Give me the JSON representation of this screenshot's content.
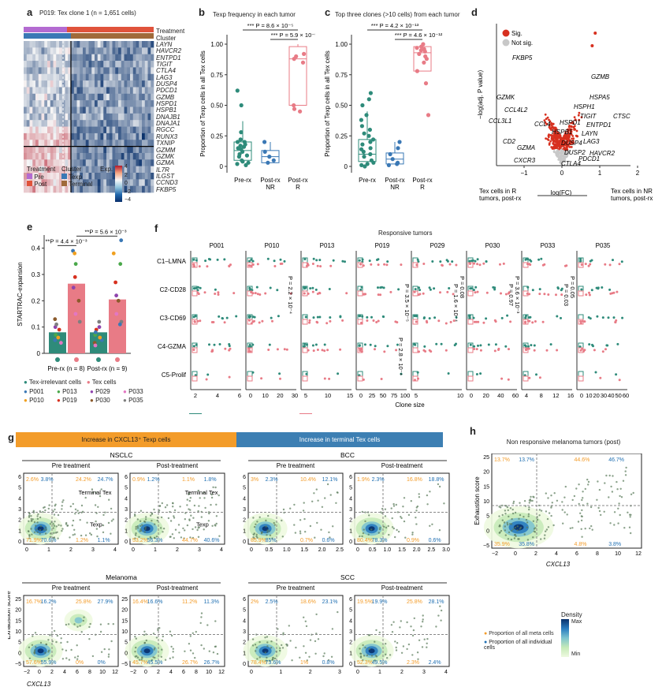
{
  "colors": {
    "pre": "#2e8b7a",
    "post": "#e87b86",
    "texp": "#3a78b5",
    "terminal": "#a06a3a",
    "sig": "#d7301f",
    "notsig": "#c8c8c8",
    "orange": "#f39c2a",
    "blue": "#1f6fb2",
    "banner_left": "#f39c2a",
    "banner_right": "#3d7fb3"
  },
  "panel_a": {
    "label": "a",
    "title": "P019: Tex clone 1 (n = 1,651 cells)",
    "track_labels": [
      "Treatment",
      "Cluster"
    ],
    "genes": [
      "LAYN",
      "HAVCR2",
      "ENTPD1",
      "TIGIT",
      "CTLA4",
      "LAG3",
      "DUSP4",
      "PDCD1",
      "GZMB",
      "HSPD1",
      "HSPB1",
      "DNAJB1",
      "DNAJA1",
      "RGCC",
      "RUNX3",
      "TXNIP",
      "GZMM",
      "GZMK",
      "GZMA",
      "IL7R",
      "ILGST",
      "CCND3",
      "FKBP5"
    ],
    "legend": {
      "treatment_title": "Treatment",
      "treatment": [
        "Pre",
        "Post"
      ],
      "cluster_title": "Cluster",
      "cluster": [
        "Texp",
        "Terminal"
      ],
      "exp_title": "Exp.",
      "exp_ticks": [
        "4",
        "2",
        "0",
        "−2",
        "−4"
      ]
    }
  },
  "panel_b": {
    "label": "b",
    "title": "Texp frequency in each tumor",
    "ylabel": "Proportion of Texp cells in all Tex cells",
    "pvals": [
      "*** P = 8.6 × 10⁻⁵",
      "*** P = 5.9 × 10⁻⁵"
    ],
    "yticks": [
      "0",
      "0.25",
      "0.50",
      "0.75",
      "1.00"
    ],
    "groups": [
      "Pre-rx",
      "Post-rx NR",
      "Post-rx R"
    ]
  },
  "panel_c": {
    "label": "c",
    "title": "Top three clones (>10 cells) from each tumor",
    "ylabel": "Proportion of Texp cells in all Tex cells",
    "pvals": [
      "*** P = 4.2 × 10⁻¹³",
      "*** P = 4.6 × 10⁻¹²"
    ],
    "yticks": [
      "0",
      "0.25",
      "0.50",
      "0.75",
      "1.00"
    ],
    "groups": [
      "Pre-rx",
      "Post-rx NR",
      "Post-rx R"
    ]
  },
  "panel_d": {
    "label": "d",
    "legend": [
      "Sig.",
      "Not sig."
    ],
    "ylabel": "−log(adj. P value)",
    "xticks": [
      "−1",
      "0",
      "1",
      "2"
    ],
    "genes": [
      "FKBP5",
      "GZMB",
      "GZMK",
      "HSPA5",
      "HSPH1",
      "CCL4L2",
      "TIGIT",
      "CTSC",
      "CCL3L1",
      "HSPD1",
      "CCL4",
      "ENTPD1",
      "HSPB1",
      "LAYN",
      "LAG3",
      "CD2",
      "DUSP4",
      "GZMA",
      "DUSP2",
      "HAVCR2",
      "PDCD1",
      "CXCR3",
      "CTLA4"
    ],
    "axis_left": "Tex cells in R tumors, post-rx",
    "axis_mid": "log(FC)",
    "axis_right": "Tex cells in NR tumors, post-rx"
  },
  "panel_e": {
    "label": "e",
    "ylabel": "STARTRAC-expansion",
    "yticks": [
      "0",
      "0.1",
      "0.2",
      "0.3",
      "0.4"
    ],
    "pvals": [
      "**P = 4.4 × 10⁻³",
      "**P = 5.6 × 10⁻³"
    ],
    "groups": [
      "Pre-rx (n = 8)",
      "Post-rx (n = 9)"
    ],
    "bars": [
      0.08,
      0.265,
      0.08,
      0.205
    ],
    "legend_types": [
      "Tex-irrelevant cells",
      "Tex cells"
    ],
    "patients": [
      "P001",
      "P010",
      "P013",
      "P019",
      "P029",
      "P030",
      "P033",
      "P035"
    ],
    "patient_colors": [
      "#3a78b5",
      "#f0a020",
      "#4aa84a",
      "#d7301f",
      "#8e44ad",
      "#8b5a2b",
      "#e377c2",
      "#7f7f7f"
    ]
  },
  "panel_f": {
    "label": "f",
    "header": "Responsive tumors",
    "patients": [
      "P001",
      "P010",
      "P013",
      "P019",
      "P029",
      "P030",
      "P033",
      "P035"
    ],
    "rows": [
      "C1–LMNA",
      "C2-CD28",
      "C3-CD69",
      "C4-GZMA",
      "C5-Prolif"
    ],
    "pvals": [
      "P = 2.2 × 10⁻⁴",
      "P = 3.5 × 10⁻⁵",
      "P = 2.8 × 10⁻⁴",
      "P = 0.08",
      "P = 1.6 × 10⁻⁴",
      "P = 3.6 × 10⁻³",
      "P = 0.97",
      "P = 0.05",
      "P = 0.03"
    ],
    "xticks": [
      [
        "2",
        "4",
        "6"
      ],
      [
        "0",
        "10",
        "20",
        "30"
      ],
      [
        "5",
        "10",
        "15"
      ],
      [
        "0",
        "25",
        "50",
        "75",
        "100"
      ],
      [
        "5",
        "10"
      ],
      [
        "0",
        "20",
        "40",
        "60"
      ],
      [
        "4",
        "8",
        "12",
        "16"
      ],
      [
        "0",
        "10",
        "20",
        "30",
        "40",
        "50",
        "60"
      ]
    ],
    "xlabel": "Clone size",
    "legend": [
      "Pre treatment",
      "Post-treatment"
    ]
  },
  "panel_g": {
    "label": "g",
    "banner_left": "Increase in CXCL13⁺ Texp cells",
    "banner_right": "Increase in terminal Tex cells",
    "groups": [
      {
        "name": "NSCLC",
        "plots": [
          {
            "title": "Pre treatment",
            "q": [
              "2.6%",
              "3.8%",
              "24.2%",
              "24.7%",
              "71.9%",
              "70.6%",
              "1.2%",
              "1.1%"
            ],
            "yt": [
              "0",
              "1",
              "2",
              "3",
              "4",
              "5",
              "6"
            ],
            "xt": [
              "0",
              "1",
              "2",
              "3",
              "4"
            ],
            "lab": [
              "Terminal Tex",
              "Texp"
            ]
          },
          {
            "title": "Post-treatment",
            "q": [
              "0.9%",
              "1.2%",
              "1.1%",
              "1.8%",
              "53.2%",
              "56.3%",
              "44.7%",
              "40.6%"
            ],
            "yt": [
              "0",
              "1",
              "2",
              "3",
              "4",
              "5",
              "6"
            ],
            "xt": [
              "0",
              "1",
              "2",
              "3",
              "4"
            ],
            "lab": [
              "Terminal Tex",
              "Texp"
            ]
          }
        ]
      },
      {
        "name": "BCC",
        "plots": [
          {
            "title": "Pre treatment",
            "q": [
              "3%",
              "2.3%",
              "10.4%",
              "12.1%",
              "85.9%",
              "85%",
              "0.7%",
              "0.6%"
            ],
            "yt": [
              "0",
              "1",
              "2",
              "3",
              "4",
              "5",
              "6"
            ],
            "xt": [
              "0",
              "0.5",
              "1.0",
              "1.5",
              "2.0",
              "2.5"
            ],
            "lab": []
          },
          {
            "title": "Post-treatment",
            "q": [
              "1.9%",
              "2.3%",
              "16.8%",
              "18.8%",
              "80.4%",
              "78.3%",
              "0.9%",
              "0.6%"
            ],
            "yt": [
              "0",
              "1",
              "2",
              "3",
              "4",
              "5",
              "6"
            ],
            "xt": [
              "0",
              "0.5",
              "1.0",
              "1.5",
              "2.0",
              "2.5",
              "3.0"
            ],
            "lab": []
          }
        ]
      },
      {
        "name": "Melanoma",
        "plots": [
          {
            "title": "Pre treatment",
            "q": [
              "16.7%",
              "16.2%",
              "25.8%",
              "27.9%",
              "57.6%",
              "55.9%",
              "0%",
              "0%"
            ],
            "yt": [
              "−5",
              "0",
              "5",
              "10",
              "15",
              "20",
              "25"
            ],
            "xt": [
              "−2",
              "0",
              "2",
              "4",
              "6",
              "8",
              "10",
              "12"
            ],
            "lab": []
          },
          {
            "title": "Post-treatment",
            "q": [
              "16.4%",
              "16.6%",
              "11.2%",
              "11.3%",
              "45.7%",
              "45.5%",
              "26.7%",
              "26.7%"
            ],
            "yt": [
              "−5",
              "0",
              "5",
              "10",
              "15",
              "20",
              "25"
            ],
            "xt": [
              "−2",
              "0",
              "2",
              "4",
              "6",
              "8",
              "10",
              "12"
            ],
            "lab": []
          }
        ]
      },
      {
        "name": "SCC",
        "plots": [
          {
            "title": "Pre treatment",
            "q": [
              "2%",
              "2.5%",
              "18.6%",
              "23.1%",
              "78.4%",
              "73.6%",
              "1%",
              "0.8%"
            ],
            "yt": [
              "0",
              "1",
              "2",
              "3",
              "4",
              "5",
              "6"
            ],
            "xt": [
              "0",
              "1",
              "2",
              "3"
            ],
            "lab": []
          },
          {
            "title": "Post-treatment",
            "q": [
              "19.5%",
              "19.9%",
              "25.8%",
              "28.1%",
              "52.3%",
              "49.5%",
              "2.3%",
              "2.4%"
            ],
            "yt": [
              "0",
              "1",
              "2",
              "3",
              "4",
              "5",
              "6"
            ],
            "xt": [
              "0",
              "1",
              "2",
              "3",
              "4"
            ],
            "lab": []
          }
        ]
      }
    ],
    "ylabel": "Exhaustion score",
    "xlabel": "CXCL13",
    "density_title": "Density",
    "density_max": "Max",
    "density_min": "Min",
    "legend": [
      "Proportion of all meta cells",
      "Proportion of all individual cells"
    ]
  },
  "panel_h": {
    "label": "h",
    "title": "Non responsive melanoma tumors (post)",
    "q": [
      "13.7%",
      "13.7%",
      "44.6%",
      "46.7%",
      "35.9%",
      "35.8%",
      "4.8%",
      "3.8%"
    ],
    "ylabel": "Exhaustion score",
    "xlabel": "CXCL13",
    "yt": [
      "−5",
      "0",
      "5",
      "10",
      "15",
      "20",
      "25"
    ],
    "xt": [
      "−2",
      "0",
      "2",
      "4",
      "6",
      "8",
      "10",
      "12"
    ]
  }
}
